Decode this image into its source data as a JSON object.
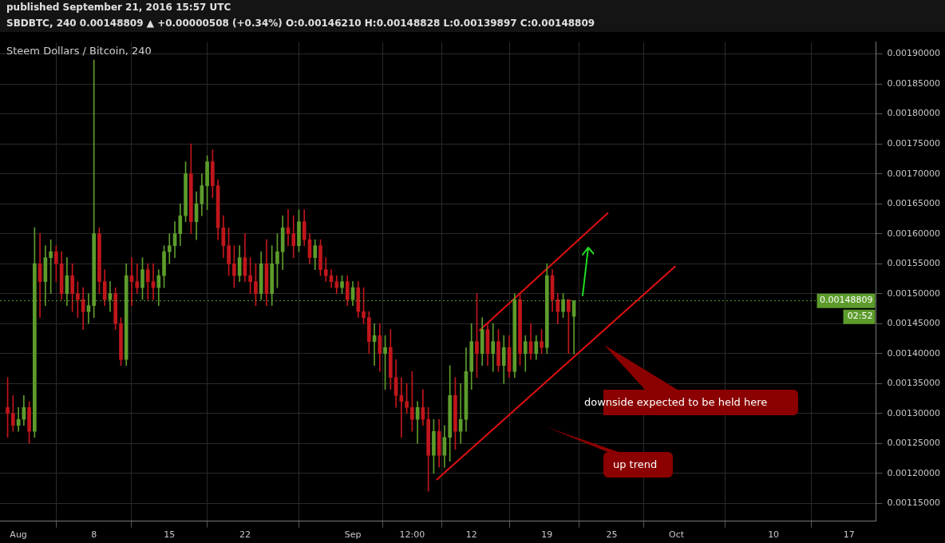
{
  "chart_data": {
    "type": "candlestick",
    "title": "published September 21, 2016 15:57 UTC",
    "subtitle": "SBDBTC, 240  0.00148809 ▲ +0.00000508 (+0.34%)  O:0.00146210  H:0.00148828  L:0.00139897  C:0.00148809",
    "x": [
      "2016-07-31T00:00",
      "2016-07-31T12:00",
      "2016-08-01T00:00",
      "2016-08-01T12:00",
      "2016-08-02T00:00",
      "2016-08-02T12:00",
      "2016-08-03T00:00",
      "2016-08-03T12:00",
      "2016-08-04T00:00",
      "2016-08-04T12:00",
      "2016-08-05T00:00",
      "2016-08-05T12:00",
      "2016-08-06T00:00",
      "2016-08-06T12:00",
      "2016-08-07T00:00",
      "2016-08-07T12:00",
      "2016-08-08T00:00",
      "2016-08-08T12:00",
      "2016-08-09T00:00",
      "2016-08-09T12:00",
      "2016-08-10T00:00",
      "2016-08-10T12:00",
      "2016-08-11T00:00",
      "2016-08-11T12:00",
      "2016-08-12T00:00",
      "2016-08-12T12:00",
      "2016-08-13T00:00",
      "2016-08-13T12:00",
      "2016-08-14T00:00",
      "2016-08-14T12:00",
      "2016-08-15T00:00",
      "2016-08-15T12:00",
      "2016-08-16T00:00",
      "2016-08-16T12:00",
      "2016-08-17T00:00",
      "2016-08-17T12:00",
      "2016-08-18T00:00",
      "2016-08-18T12:00",
      "2016-08-19T00:00",
      "2016-08-19T12:00",
      "2016-08-20T00:00",
      "2016-08-20T12:00",
      "2016-08-21T00:00",
      "2016-08-21T12:00",
      "2016-08-22T00:00",
      "2016-08-22T12:00",
      "2016-08-23T00:00",
      "2016-08-23T12:00",
      "2016-08-24T00:00",
      "2016-08-24T12:00",
      "2016-08-25T00:00",
      "2016-08-25T12:00",
      "2016-08-26T00:00",
      "2016-08-26T12:00",
      "2016-08-27T00:00",
      "2016-08-27T12:00",
      "2016-08-28T00:00",
      "2016-08-28T12:00",
      "2016-08-29T00:00",
      "2016-08-29T12:00",
      "2016-08-30T00:00",
      "2016-08-30T12:00",
      "2016-08-31T00:00",
      "2016-08-31T12:00",
      "2016-09-01T00:00",
      "2016-09-01T12:00",
      "2016-09-02T00:00",
      "2016-09-02T12:00",
      "2016-09-03T00:00",
      "2016-09-03T12:00",
      "2016-09-04T00:00",
      "2016-09-04T12:00",
      "2016-09-05T00:00",
      "2016-09-05T12:00",
      "2016-09-06T00:00",
      "2016-09-06T12:00",
      "2016-09-07T00:00",
      "2016-09-07T12:00",
      "2016-09-08T00:00",
      "2016-09-08T12:00",
      "2016-09-09T00:00",
      "2016-09-09T12:00",
      "2016-09-10T00:00",
      "2016-09-10T12:00",
      "2016-09-11T00:00",
      "2016-09-11T12:00",
      "2016-09-12T00:00",
      "2016-09-12T12:00",
      "2016-09-13T00:00",
      "2016-09-13T12:00",
      "2016-09-14T00:00",
      "2016-09-14T12:00",
      "2016-09-15T00:00",
      "2016-09-15T12:00",
      "2016-09-16T00:00",
      "2016-09-16T12:00",
      "2016-09-17T00:00",
      "2016-09-17T12:00",
      "2016-09-18T00:00",
      "2016-09-18T12:00",
      "2016-09-19T00:00",
      "2016-09-19T12:00",
      "2016-09-20T00:00",
      "2016-09-20T12:00",
      "2016-09-21T00:00",
      "2016-09-21T12:00"
    ],
    "ohlc": [
      [
        0.00131,
        0.00136,
        0.00126,
        0.0013
      ],
      [
        0.0013,
        0.00133,
        0.00127,
        0.00128
      ],
      [
        0.00128,
        0.00131,
        0.00127,
        0.00129
      ],
      [
        0.00129,
        0.00133,
        0.00128,
        0.00131
      ],
      [
        0.00131,
        0.00132,
        0.00125,
        0.00127
      ],
      [
        0.00127,
        0.00161,
        0.00126,
        0.00155
      ],
      [
        0.00155,
        0.0016,
        0.00146,
        0.00152
      ],
      [
        0.00152,
        0.00158,
        0.00148,
        0.00156
      ],
      [
        0.00156,
        0.00159,
        0.0015,
        0.00157
      ],
      [
        0.00157,
        0.00158,
        0.00152,
        0.00155
      ],
      [
        0.00155,
        0.00157,
        0.00149,
        0.0015
      ],
      [
        0.0015,
        0.00156,
        0.00148,
        0.00153
      ],
      [
        0.00153,
        0.00155,
        0.00147,
        0.0015
      ],
      [
        0.0015,
        0.00152,
        0.00146,
        0.00149
      ],
      [
        0.00149,
        0.00151,
        0.00144,
        0.00147
      ],
      [
        0.00147,
        0.0015,
        0.00145,
        0.00148
      ],
      [
        0.00148,
        0.00189,
        0.00146,
        0.0016
      ],
      [
        0.0016,
        0.00161,
        0.0015,
        0.00152
      ],
      [
        0.00152,
        0.00154,
        0.00148,
        0.00149
      ],
      [
        0.00149,
        0.00152,
        0.00147,
        0.0015
      ],
      [
        0.0015,
        0.00151,
        0.00144,
        0.00145
      ],
      [
        0.00145,
        0.00146,
        0.00138,
        0.00139
      ],
      [
        0.00139,
        0.00155,
        0.00138,
        0.00153
      ],
      [
        0.00153,
        0.00156,
        0.00148,
        0.00152
      ],
      [
        0.00152,
        0.00155,
        0.0015,
        0.00151
      ],
      [
        0.00151,
        0.00156,
        0.00149,
        0.00154
      ],
      [
        0.00154,
        0.00155,
        0.00149,
        0.00152
      ],
      [
        0.00152,
        0.00155,
        0.00149,
        0.00151
      ],
      [
        0.00151,
        0.00154,
        0.00148,
        0.00153
      ],
      [
        0.00153,
        0.00158,
        0.00151,
        0.00157
      ],
      [
        0.00157,
        0.0016,
        0.00155,
        0.00158
      ],
      [
        0.00158,
        0.00162,
        0.00156,
        0.0016
      ],
      [
        0.0016,
        0.00165,
        0.00158,
        0.00163
      ],
      [
        0.00163,
        0.00172,
        0.00162,
        0.0017
      ],
      [
        0.0017,
        0.00175,
        0.0016,
        0.00162
      ],
      [
        0.00162,
        0.00167,
        0.00159,
        0.00165
      ],
      [
        0.00165,
        0.0017,
        0.00163,
        0.00168
      ],
      [
        0.00168,
        0.00173,
        0.00164,
        0.00172
      ],
      [
        0.00172,
        0.00174,
        0.00166,
        0.00168
      ],
      [
        0.00168,
        0.00169,
        0.00159,
        0.00161
      ],
      [
        0.00161,
        0.00163,
        0.00156,
        0.00158
      ],
      [
        0.00158,
        0.00161,
        0.00153,
        0.00155
      ],
      [
        0.00155,
        0.00158,
        0.00151,
        0.00153
      ],
      [
        0.00153,
        0.00158,
        0.00152,
        0.00156
      ],
      [
        0.00156,
        0.0016,
        0.00152,
        0.00153
      ],
      [
        0.00153,
        0.00156,
        0.0015,
        0.00152
      ],
      [
        0.00152,
        0.00155,
        0.00148,
        0.0015
      ],
      [
        0.0015,
        0.00157,
        0.00149,
        0.00155
      ],
      [
        0.00155,
        0.00159,
        0.00148,
        0.0015
      ],
      [
        0.0015,
        0.00158,
        0.00148,
        0.00155
      ],
      [
        0.00155,
        0.0016,
        0.00151,
        0.00157
      ],
      [
        0.00157,
        0.00163,
        0.00154,
        0.00161
      ],
      [
        0.00161,
        0.00164,
        0.00158,
        0.0016
      ],
      [
        0.0016,
        0.00163,
        0.00156,
        0.00158
      ],
      [
        0.00158,
        0.00164,
        0.00157,
        0.00162
      ],
      [
        0.00162,
        0.00164,
        0.00158,
        0.00159
      ],
      [
        0.00159,
        0.0016,
        0.00155,
        0.00156
      ],
      [
        0.00156,
        0.00159,
        0.00154,
        0.00158
      ],
      [
        0.00158,
        0.00159,
        0.00153,
        0.00154
      ],
      [
        0.00154,
        0.00156,
        0.00152,
        0.00153
      ],
      [
        0.00153,
        0.00154,
        0.00151,
        0.00152
      ],
      [
        0.00152,
        0.00153,
        0.0015,
        0.00151
      ],
      [
        0.00151,
        0.00153,
        0.0015,
        0.00152
      ],
      [
        0.00152,
        0.00153,
        0.00148,
        0.00149
      ],
      [
        0.00149,
        0.00152,
        0.00148,
        0.00151
      ],
      [
        0.00151,
        0.00152,
        0.00146,
        0.00147
      ],
      [
        0.00147,
        0.00151,
        0.00145,
        0.00146
      ],
      [
        0.00146,
        0.00147,
        0.0014,
        0.00142
      ],
      [
        0.00142,
        0.00145,
        0.00138,
        0.00143
      ],
      [
        0.00143,
        0.00145,
        0.00137,
        0.0014
      ],
      [
        0.0014,
        0.00143,
        0.00134,
        0.00141
      ],
      [
        0.00141,
        0.00144,
        0.00134,
        0.00136
      ],
      [
        0.00136,
        0.00139,
        0.00131,
        0.00133
      ],
      [
        0.00133,
        0.00136,
        0.00126,
        0.00132
      ],
      [
        0.00132,
        0.00135,
        0.0013,
        0.00131
      ],
      [
        0.00131,
        0.00137,
        0.00127,
        0.00129
      ],
      [
        0.00129,
        0.00132,
        0.00125,
        0.00131
      ],
      [
        0.00131,
        0.00134,
        0.00128,
        0.00129
      ],
      [
        0.00129,
        0.00131,
        0.00117,
        0.00123
      ],
      [
        0.00123,
        0.00129,
        0.0012,
        0.00127
      ],
      [
        0.00127,
        0.00129,
        0.00121,
        0.00123
      ],
      [
        0.00123,
        0.00128,
        0.00121,
        0.00126
      ],
      [
        0.00126,
        0.00138,
        0.00122,
        0.00133
      ],
      [
        0.00133,
        0.00136,
        0.00124,
        0.00127
      ],
      [
        0.00127,
        0.00135,
        0.00125,
        0.00129
      ],
      [
        0.00129,
        0.00141,
        0.00127,
        0.00137
      ],
      [
        0.00137,
        0.00145,
        0.00134,
        0.00142
      ],
      [
        0.00142,
        0.0015,
        0.00136,
        0.0014
      ],
      [
        0.0014,
        0.00146,
        0.00138,
        0.00144
      ],
      [
        0.00144,
        0.00145,
        0.00138,
        0.0014
      ],
      [
        0.0014,
        0.00145,
        0.00137,
        0.00142
      ],
      [
        0.00142,
        0.00144,
        0.00137,
        0.00138
      ],
      [
        0.00138,
        0.00143,
        0.00135,
        0.00141
      ],
      [
        0.00141,
        0.00143,
        0.00136,
        0.00137
      ],
      [
        0.00137,
        0.0015,
        0.00136,
        0.00149
      ],
      [
        0.00149,
        0.0015,
        0.00138,
        0.0014
      ],
      [
        0.0014,
        0.00143,
        0.00137,
        0.00142
      ],
      [
        0.00142,
        0.00145,
        0.00139,
        0.0014
      ],
      [
        0.0014,
        0.00143,
        0.00139,
        0.00142
      ],
      [
        0.00142,
        0.00144,
        0.0014,
        0.00141
      ],
      [
        0.00141,
        0.00155,
        0.0014,
        0.00153
      ],
      [
        0.00153,
        0.00154,
        0.00147,
        0.00149
      ],
      [
        0.00149,
        0.0015,
        0.00145,
        0.00147
      ],
      [
        0.00147,
        0.0015,
        0.00146,
        0.00149
      ],
      [
        0.00149,
        0.00149,
        0.0014,
        0.00147
      ],
      [
        0.0014621,
        0.00148828,
        0.00139897,
        0.00148809
      ]
    ],
    "series": [
      {
        "type": "line",
        "color": "#e01010",
        "x": [
          "2016-09-12T17:00",
          "2016-09-24T16:00"
        ],
        "values": [
          0.001438,
          0.001635
        ]
      },
      {
        "type": "line",
        "color": "#e01010",
        "x": [
          "2016-09-08T18:00",
          "2016-09-30T22:00"
        ],
        "values": [
          0.001189,
          0.001546
        ]
      }
    ],
    "xlim": [
      "2016-07-30T07:00",
      "2016-10-19T12:00"
    ],
    "xticks": [
      {
        "value": "2016-08-01",
        "label": "Aug"
      },
      {
        "value": "2016-08-08",
        "label": "8"
      },
      {
        "value": "2016-08-15",
        "label": "15"
      },
      {
        "value": "2016-08-22",
        "label": "22"
      },
      {
        "value": "2016-09-01",
        "label": "Sep"
      },
      {
        "value": "2016-09-06T12:00",
        "label": "12:00"
      },
      {
        "value": "2016-09-12",
        "label": "12"
      },
      {
        "value": "2016-09-19",
        "label": "19"
      },
      {
        "value": "2016-09-25",
        "label": "25"
      },
      {
        "value": "2016-10-01",
        "label": "Oct"
      },
      {
        "value": "2016-10-10",
        "label": "10"
      },
      {
        "value": "2016-10-17",
        "label": "17"
      }
    ],
    "ylim": [
      0.00112,
      0.00192
    ],
    "yticks": [
      {
        "value": 0.00115,
        "label": "0.00115000"
      },
      {
        "value": 0.0012,
        "label": "0.00120000"
      },
      {
        "value": 0.00125,
        "label": "0.00125000"
      },
      {
        "value": 0.0013,
        "label": "0.00130000"
      },
      {
        "value": 0.00135,
        "label": "0.00135000"
      },
      {
        "value": 0.0014,
        "label": "0.00140000"
      },
      {
        "value": 0.00145,
        "label": "0.00145000"
      },
      {
        "value": 0.0015,
        "label": "0.00150000"
      },
      {
        "value": 0.00155,
        "label": "0.00155000"
      },
      {
        "value": 0.0016,
        "label": "0.00160000"
      },
      {
        "value": 0.00165,
        "label": "0.00165000"
      },
      {
        "value": 0.0017,
        "label": "0.00170000"
      },
      {
        "value": 0.00175,
        "label": "0.00175000"
      },
      {
        "value": 0.0018,
        "label": "0.00180000"
      },
      {
        "value": 0.00185,
        "label": "0.00185000"
      },
      {
        "value": 0.0019,
        "label": "0.00190000"
      }
    ],
    "ref_lines": [
      {
        "axis": "y",
        "value": 0.00148809,
        "label": "0.00148809",
        "color": "#5d9c2c",
        "line_style": "dotted"
      }
    ],
    "annotations": [
      "Steem Dollars / Bitcoin, 240",
      "02:52",
      "downside expected to be held here",
      "up trend"
    ],
    "grid": true,
    "legend": false
  }
}
